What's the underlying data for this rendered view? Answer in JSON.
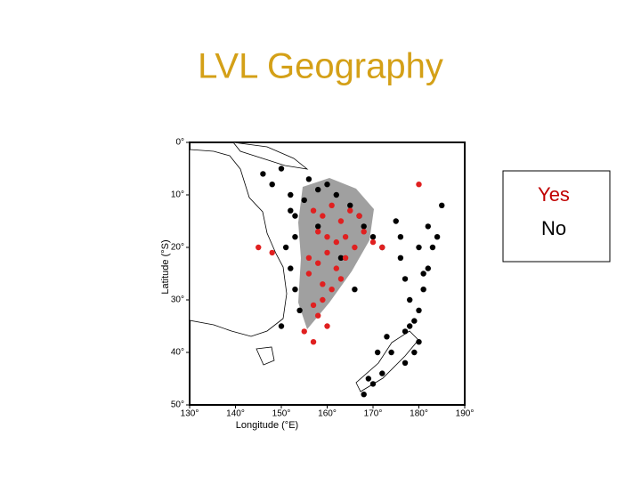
{
  "title": "LVL Geography",
  "chart_data": {
    "type": "scatter",
    "xlabel": "Longitude (°E)",
    "ylabel": "Latitude (°S)",
    "xlim": [
      130,
      190
    ],
    "ylim": [
      0,
      50
    ],
    "y_inverted": true,
    "xticks": [
      {
        "value": 130,
        "label": "130°"
      },
      {
        "value": 140,
        "label": "140°"
      },
      {
        "value": 150,
        "label": "150°"
      },
      {
        "value": 160,
        "label": "160°"
      },
      {
        "value": 170,
        "label": "170°"
      },
      {
        "value": 180,
        "label": "180°"
      },
      {
        "value": 190,
        "label": "190°"
      }
    ],
    "yticks": [
      {
        "value": 0,
        "label": "0°"
      },
      {
        "value": 10,
        "label": "10°"
      },
      {
        "value": 20,
        "label": "20°"
      },
      {
        "value": 30,
        "label": "30°"
      },
      {
        "value": 40,
        "label": "40°"
      },
      {
        "value": 50,
        "label": "50°"
      }
    ],
    "series": [
      {
        "name": "Yes",
        "color": "#e02020",
        "x": [
          157,
          159,
          161,
          163,
          165,
          167,
          158,
          160,
          162,
          164,
          166,
          168,
          170,
          156,
          158,
          160,
          162,
          164,
          159,
          161,
          163,
          157,
          158,
          160,
          155,
          157,
          145,
          148,
          180,
          172,
          156,
          159
        ],
        "y": [
          13,
          14,
          12,
          15,
          13,
          14,
          17,
          18,
          19,
          18,
          20,
          17,
          19,
          22,
          23,
          21,
          24,
          22,
          27,
          28,
          26,
          31,
          33,
          35,
          36,
          38,
          20,
          21,
          8,
          20,
          25,
          30
        ]
      },
      {
        "name": "No",
        "color": "#000000",
        "x": [
          146,
          148,
          150,
          152,
          153,
          151,
          152,
          153,
          154,
          150,
          152,
          153,
          156,
          158,
          160,
          162,
          165,
          167,
          168,
          170,
          172,
          175,
          176,
          177,
          178,
          179,
          180,
          181,
          182,
          183,
          178,
          179,
          180,
          181,
          176,
          177,
          174,
          172,
          170,
          168,
          169,
          171,
          173,
          177,
          180,
          155,
          158,
          163,
          166,
          185,
          184,
          182
        ],
        "y": [
          6,
          8,
          5,
          10,
          14,
          20,
          24,
          28,
          32,
          35,
          13,
          18,
          7,
          9,
          8,
          10,
          12,
          14,
          16,
          18,
          20,
          15,
          22,
          26,
          30,
          34,
          38,
          28,
          24,
          20,
          35,
          40,
          32,
          25,
          18,
          42,
          40,
          44,
          46,
          48,
          45,
          40,
          37,
          36,
          20,
          11,
          16,
          22,
          28,
          12,
          18,
          16
        ]
      }
    ],
    "legend_colors": [
      "#c00000",
      "#000000"
    ]
  }
}
